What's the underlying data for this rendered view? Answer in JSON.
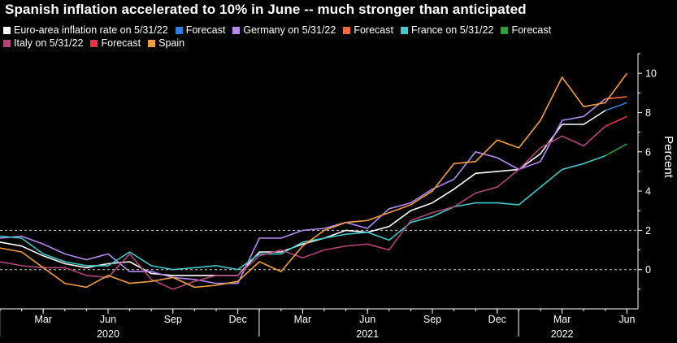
{
  "chart_data": {
    "type": "line",
    "title": "Spanish inflation accelerated to 10% in June -- much stronger than anticipated",
    "ylabel": "Percent",
    "ylim": [
      -2,
      11
    ],
    "yticks": [
      0,
      2,
      4,
      6,
      8,
      10
    ],
    "reference_lines": [
      0,
      2
    ],
    "x_ticks": [
      {
        "label": "Mar",
        "month_index": 2
      },
      {
        "label": "Jun",
        "month_index": 5
      },
      {
        "label": "Sep",
        "month_index": 8
      },
      {
        "label": "Dec",
        "month_index": 11
      },
      {
        "label": "Mar",
        "month_index": 14
      },
      {
        "label": "Jun",
        "month_index": 17
      },
      {
        "label": "Sep",
        "month_index": 20
      },
      {
        "label": "Dec",
        "month_index": 23
      },
      {
        "label": "Mar",
        "month_index": 26
      },
      {
        "label": "Jun",
        "month_index": 29
      }
    ],
    "year_labels": [
      {
        "label": "2020",
        "month_index": 5
      },
      {
        "label": "2021",
        "month_index": 17
      },
      {
        "label": "2022",
        "month_index": 26
      }
    ],
    "x": [
      "2020-01",
      "2020-02",
      "2020-03",
      "2020-04",
      "2020-05",
      "2020-06",
      "2020-07",
      "2020-08",
      "2020-09",
      "2020-10",
      "2020-11",
      "2020-12",
      "2021-01",
      "2021-02",
      "2021-03",
      "2021-04",
      "2021-05",
      "2021-06",
      "2021-07",
      "2021-08",
      "2021-09",
      "2021-10",
      "2021-11",
      "2021-12",
      "2022-01",
      "2022-02",
      "2022-03",
      "2022-04",
      "2022-05",
      "2022-06"
    ],
    "series": [
      {
        "name": "Euro-area inflation rate on 5/31/22",
        "color": "#ffffff",
        "values": [
          1.4,
          1.2,
          0.7,
          0.3,
          0.1,
          0.3,
          0.4,
          -0.2,
          -0.3,
          -0.3,
          -0.3,
          -0.3,
          0.9,
          0.9,
          1.3,
          1.6,
          2.0,
          1.9,
          2.2,
          3.0,
          3.4,
          4.1,
          4.9,
          5.0,
          5.1,
          5.9,
          7.4,
          7.4,
          8.1,
          null
        ]
      },
      {
        "name": "Forecast",
        "color": "#2f7fe0",
        "values": [
          null,
          null,
          null,
          null,
          null,
          null,
          null,
          null,
          null,
          null,
          null,
          null,
          null,
          null,
          null,
          null,
          null,
          null,
          null,
          null,
          null,
          null,
          null,
          null,
          null,
          null,
          null,
          null,
          8.1,
          8.5
        ]
      },
      {
        "name": "Germany on 5/31/22",
        "color": "#b48cf0",
        "values": [
          1.6,
          1.7,
          1.3,
          0.8,
          0.5,
          0.8,
          -0.1,
          -0.1,
          -0.4,
          -0.5,
          -0.7,
          -0.7,
          1.6,
          1.6,
          2.0,
          2.1,
          2.4,
          2.1,
          3.1,
          3.4,
          4.1,
          4.6,
          6.0,
          5.7,
          5.1,
          5.5,
          7.6,
          7.8,
          8.7,
          null
        ]
      },
      {
        "name": "Forecast",
        "color": "#ff6a3d",
        "values": [
          null,
          null,
          null,
          null,
          null,
          null,
          null,
          null,
          null,
          null,
          null,
          null,
          null,
          null,
          null,
          null,
          null,
          null,
          null,
          null,
          null,
          null,
          null,
          null,
          null,
          null,
          null,
          null,
          8.7,
          8.8
        ]
      },
      {
        "name": "France on 5/31/22",
        "color": "#3fc9c9",
        "values": [
          1.7,
          1.6,
          0.8,
          0.4,
          0.2,
          0.2,
          0.9,
          0.2,
          0.0,
          0.1,
          0.2,
          0.0,
          0.8,
          0.8,
          1.4,
          1.6,
          1.8,
          1.9,
          1.5,
          2.4,
          2.7,
          3.2,
          3.4,
          3.4,
          3.3,
          4.2,
          5.1,
          5.4,
          5.8,
          null
        ]
      },
      {
        "name": "Forecast",
        "color": "#2f9e3a",
        "values": [
          null,
          null,
          null,
          null,
          null,
          null,
          null,
          null,
          null,
          null,
          null,
          null,
          null,
          null,
          null,
          null,
          null,
          null,
          null,
          null,
          null,
          null,
          null,
          null,
          null,
          null,
          null,
          null,
          5.8,
          6.4
        ]
      },
      {
        "name": "Italy on 5/31/22",
        "color": "#b0457a",
        "values": [
          0.4,
          0.2,
          0.1,
          0.1,
          -0.3,
          -0.4,
          0.8,
          -0.5,
          -1.0,
          -0.6,
          -0.3,
          -0.3,
          0.7,
          1.0,
          0.6,
          1.0,
          1.2,
          1.3,
          1.0,
          2.5,
          2.9,
          3.2,
          3.9,
          4.2,
          5.1,
          6.2,
          6.8,
          6.3,
          7.3,
          null
        ]
      },
      {
        "name": "Forecast",
        "color": "#e8343c",
        "values": [
          null,
          null,
          null,
          null,
          null,
          null,
          null,
          null,
          null,
          null,
          null,
          null,
          null,
          null,
          null,
          null,
          null,
          null,
          null,
          null,
          null,
          null,
          null,
          null,
          null,
          null,
          null,
          null,
          7.3,
          7.8
        ]
      },
      {
        "name": "Spain",
        "color": "#f0a040",
        "values": [
          1.1,
          0.9,
          0.1,
          -0.7,
          -0.9,
          -0.3,
          -0.7,
          -0.6,
          -0.4,
          -0.9,
          -0.8,
          -0.6,
          0.4,
          -0.1,
          1.2,
          2.0,
          2.4,
          2.5,
          2.9,
          3.3,
          4.0,
          5.4,
          5.5,
          6.6,
          6.2,
          7.6,
          9.8,
          8.3,
          8.5,
          10.0
        ]
      }
    ]
  }
}
